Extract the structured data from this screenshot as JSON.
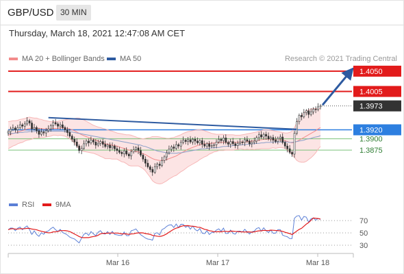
{
  "header": {
    "symbol": "GBP/USD",
    "timeframe": "30 MIN"
  },
  "timestamp": "Thursday, March 18, 2021 12:47:08 AM CET",
  "legend": {
    "ma_bb": "MA 20 + Bollinger Bands",
    "ma50": "MA 50",
    "ma_bb_color": "#f38b8b",
    "ma50_color": "#2d5aa0"
  },
  "copyright": "Research © 2021 Trading Central",
  "rsi_legend": {
    "rsi": "RSI",
    "ma9": "9MA",
    "rsi_color": "#5b7fd6",
    "ma9_color": "#e21b1b"
  },
  "colors": {
    "resistance": "#e21b1b",
    "support": "#2d7fe0",
    "green_level": "#7ac27a",
    "trendline": "#2d5aa0",
    "last_price": "#333333",
    "candle_up": "#3a3a3a"
  },
  "chart_data": {
    "type": "candlestick",
    "price_axis": {
      "ylim": [
        1.3778,
        1.4068
      ]
    },
    "x_tick_labels": [
      "Mar 16",
      "Mar 17",
      "Mar 18"
    ],
    "levels": [
      {
        "value": 1.405,
        "label": "1.4050",
        "kind": "resistance"
      },
      {
        "value": 1.4005,
        "label": "1.4005",
        "kind": "resistance"
      },
      {
        "value": 1.3973,
        "label": "1.3973",
        "kind": "last_price"
      },
      {
        "value": 1.392,
        "label": "1.3920",
        "kind": "support"
      },
      {
        "value": 1.39,
        "label": "1.3900",
        "kind": "minor"
      },
      {
        "value": 1.3875,
        "label": "1.3875",
        "kind": "minor"
      }
    ],
    "close": [
      1.3916,
      1.3921,
      1.3924,
      1.392,
      1.3925,
      1.3931,
      1.3928,
      1.3933,
      1.394,
      1.3935,
      1.3922,
      1.3925,
      1.3918,
      1.391,
      1.3915,
      1.3913,
      1.3918,
      1.3922,
      1.3929,
      1.3936,
      1.3933,
      1.3928,
      1.3931,
      1.3925,
      1.392,
      1.3914,
      1.3906,
      1.3899,
      1.3893,
      1.3884,
      1.3874,
      1.3879,
      1.3889,
      1.3895,
      1.3891,
      1.3897,
      1.3893,
      1.3886,
      1.389,
      1.3894,
      1.3888,
      1.3883,
      1.3886,
      1.388,
      1.3884,
      1.3878,
      1.3874,
      1.387,
      1.3867,
      1.3873,
      1.3866,
      1.3862,
      1.3871,
      1.3876,
      1.388,
      1.3874,
      1.3864,
      1.3855,
      1.3846,
      1.3838,
      1.3832,
      1.3826,
      1.3838,
      1.3844,
      1.3841,
      1.3852,
      1.386,
      1.3869,
      1.3877,
      1.3882,
      1.3879,
      1.3887,
      1.3884,
      1.3892,
      1.3897,
      1.3894,
      1.3898,
      1.3893,
      1.3899,
      1.3895,
      1.3891,
      1.3896,
      1.3888,
      1.3884,
      1.3889,
      1.3883,
      1.3885,
      1.3887,
      1.3893,
      1.3899,
      1.3896,
      1.3902,
      1.3892,
      1.3888,
      1.3894,
      1.3889,
      1.3885,
      1.389,
      1.3893,
      1.3892,
      1.3898,
      1.3895,
      1.3889,
      1.3892,
      1.3895,
      1.3903,
      1.3909,
      1.3904,
      1.391,
      1.3906,
      1.39,
      1.3903,
      1.3897,
      1.3894,
      1.3901,
      1.3904,
      1.3892,
      1.3884,
      1.3878,
      1.387,
      1.3866,
      1.3912,
      1.3938,
      1.3952,
      1.3949,
      1.3958,
      1.3962,
      1.3954,
      1.396,
      1.3966,
      1.3965,
      1.3971,
      1.3973
    ],
    "ma20": [
      1.3908,
      1.391,
      1.3912,
      1.3913,
      1.3915,
      1.3917,
      1.3918,
      1.392,
      1.3922,
      1.3923,
      1.3923,
      1.3924,
      1.3924,
      1.3923,
      1.3923,
      1.3922,
      1.3922,
      1.3922,
      1.3922,
      1.3923,
      1.3923,
      1.3923,
      1.3924,
      1.3924,
      1.3924,
      1.3923,
      1.3922,
      1.392,
      1.3918,
      1.3915,
      1.3912,
      1.3909,
      1.3907,
      1.3905,
      1.3903,
      1.3901,
      1.3899,
      1.3897,
      1.3895,
      1.3893,
      1.3891,
      1.3889,
      1.3888,
      1.3887,
      1.3886,
      1.3885,
      1.3884,
      1.3882,
      1.388,
      1.3879,
      1.3877,
      1.3875,
      1.3874,
      1.3873,
      1.3872,
      1.3871,
      1.3869,
      1.3867,
      1.3865,
      1.3862,
      1.3859,
      1.3856,
      1.3854,
      1.3853,
      1.3852,
      1.3852,
      1.3853,
      1.3854,
      1.3856,
      1.3858,
      1.386,
      1.3862,
      1.3865,
      1.3868,
      1.3871,
      1.3874,
      1.3877,
      1.3879,
      1.3881,
      1.3883,
      1.3885,
      1.3887,
      1.3888,
      1.3889,
      1.3889,
      1.389,
      1.389,
      1.3891,
      1.3891,
      1.3892,
      1.3892,
      1.3892,
      1.3892,
      1.3892,
      1.3892,
      1.3892,
      1.3892,
      1.3892,
      1.3893,
      1.3893,
      1.3893,
      1.3894,
      1.3894,
      1.3895,
      1.3895,
      1.3896,
      1.3897,
      1.3898,
      1.3899,
      1.3899,
      1.3899,
      1.3899,
      1.3899,
      1.3898,
      1.3898,
      1.3898,
      1.3897,
      1.3896,
      1.3894,
      1.3892,
      1.3891,
      1.3892,
      1.3894,
      1.3897,
      1.39,
      1.3903,
      1.3906,
      1.3909,
      1.3912,
      1.3915,
      1.3918,
      1.3922,
      1.3925
    ],
    "bb_upper": [
      1.3938,
      1.3939,
      1.394,
      1.394,
      1.3941,
      1.3943,
      1.3944,
      1.3945,
      1.3947,
      1.3948,
      1.3947,
      1.3946,
      1.3946,
      1.3944,
      1.3943,
      1.3941,
      1.394,
      1.3939,
      1.3938,
      1.3938,
      1.3938,
      1.3939,
      1.394,
      1.3941,
      1.3942,
      1.3943,
      1.3944,
      1.3944,
      1.3945,
      1.3946,
      1.3946,
      1.3944,
      1.3942,
      1.3939,
      1.3936,
      1.3933,
      1.393,
      1.3928,
      1.3926,
      1.3925,
      1.3923,
      1.3922,
      1.392,
      1.3918,
      1.3917,
      1.3915,
      1.3913,
      1.3912,
      1.3911,
      1.391,
      1.3909,
      1.3909,
      1.3908,
      1.3906,
      1.3904,
      1.3902,
      1.3901,
      1.39,
      1.3901,
      1.3902,
      1.3903,
      1.3905,
      1.3905,
      1.3905,
      1.3904,
      1.3903,
      1.3902,
      1.3901,
      1.3901,
      1.3902,
      1.3903,
      1.3905,
      1.3907,
      1.3909,
      1.3912,
      1.3914,
      1.3916,
      1.3917,
      1.3918,
      1.3919,
      1.392,
      1.392,
      1.3919,
      1.3918,
      1.3916,
      1.3914,
      1.3912,
      1.3911,
      1.391,
      1.391,
      1.391,
      1.391,
      1.3909,
      1.3909,
      1.3909,
      1.3909,
      1.3908,
      1.3908,
      1.3908,
      1.3909,
      1.391,
      1.3911,
      1.3912,
      1.3913,
      1.3914,
      1.3915,
      1.3917,
      1.3918,
      1.392,
      1.392,
      1.392,
      1.3919,
      1.3918,
      1.3917,
      1.3916,
      1.3915,
      1.3914,
      1.3913,
      1.3913,
      1.3914,
      1.3917,
      1.3925,
      1.3936,
      1.3945,
      1.3952,
      1.3958,
      1.3962,
      1.3964,
      1.3966,
      1.3967,
      1.3967,
      1.3967,
      1.3967
    ],
    "bb_lower": [
      1.3878,
      1.3881,
      1.3884,
      1.3886,
      1.3889,
      1.3891,
      1.3892,
      1.3895,
      1.3897,
      1.3898,
      1.3899,
      1.3902,
      1.3902,
      1.3902,
      1.3903,
      1.3903,
      1.3904,
      1.3905,
      1.3906,
      1.3908,
      1.3908,
      1.3907,
      1.3908,
      1.3907,
      1.3906,
      1.3903,
      1.39,
      1.3896,
      1.3891,
      1.3884,
      1.3878,
      1.3874,
      1.3872,
      1.3871,
      1.387,
      1.3869,
      1.3868,
      1.3866,
      1.3864,
      1.3861,
      1.3859,
      1.3856,
      1.3856,
      1.3856,
      1.3855,
      1.3855,
      1.3855,
      1.3852,
      1.3849,
      1.3848,
      1.3845,
      1.3841,
      1.384,
      1.384,
      1.384,
      1.384,
      1.3837,
      1.3834,
      1.3829,
      1.3822,
      1.3815,
      1.3807,
      1.3803,
      1.3801,
      1.38,
      1.3801,
      1.3804,
      1.3807,
      1.3811,
      1.3814,
      1.3817,
      1.3819,
      1.3823,
      1.3827,
      1.383,
      1.3834,
      1.3838,
      1.3841,
      1.3844,
      1.3847,
      1.385,
      1.3854,
      1.3857,
      1.386,
      1.3862,
      1.3866,
      1.3868,
      1.3871,
      1.3872,
      1.3874,
      1.3874,
      1.3874,
      1.3875,
      1.3875,
      1.3875,
      1.3875,
      1.3876,
      1.3876,
      1.3878,
      1.3877,
      1.3876,
      1.3877,
      1.3876,
      1.3877,
      1.3876,
      1.3877,
      1.3877,
      1.3878,
      1.3878,
      1.3878,
      1.3878,
      1.3879,
      1.388,
      1.3879,
      1.388,
      1.3881,
      1.388,
      1.3879,
      1.3875,
      1.387,
      1.3865,
      1.3859,
      1.3852,
      1.3849,
      1.3848,
      1.3848,
      1.385,
      1.3854,
      1.3858,
      1.3863,
      1.3869,
      1.3877,
      1.3883
    ],
    "ma50": [
      1.3911,
      1.3912,
      1.3912,
      1.3913,
      1.3913,
      1.3914,
      1.3914,
      1.3915,
      1.3915,
      1.3916,
      1.3916,
      1.3916,
      1.3917,
      1.3917,
      1.3917,
      1.3917,
      1.3917,
      1.3917,
      1.3917,
      1.3917,
      1.3917,
      1.3917,
      1.3917,
      1.3917,
      1.3916,
      1.3916,
      1.3915,
      1.3915,
      1.3914,
      1.3913,
      1.3912,
      1.3911,
      1.391,
      1.3909,
      1.3908,
      1.3907,
      1.3906,
      1.3905,
      1.3904,
      1.3903,
      1.3902,
      1.3901,
      1.39,
      1.3899,
      1.3898,
      1.3897,
      1.3896,
      1.3895,
      1.3894,
      1.3893,
      1.3892,
      1.3891,
      1.389,
      1.3889,
      1.3888,
      1.3887,
      1.3886,
      1.3884,
      1.3883,
      1.3881,
      1.3879,
      1.3877,
      1.3875,
      1.3873,
      1.3872,
      1.3871,
      1.387,
      1.3869,
      1.3868,
      1.3868,
      1.3868,
      1.3868,
      1.3869,
      1.3869,
      1.387,
      1.3871,
      1.3872,
      1.3873,
      1.3874,
      1.3875,
      1.3876,
      1.3877,
      1.3878,
      1.3878,
      1.3879,
      1.3879,
      1.388,
      1.388,
      1.3881,
      1.3881,
      1.3882,
      1.3883,
      1.3883,
      1.3884,
      1.3884,
      1.3885,
      1.3885,
      1.3886,
      1.3886,
      1.3887,
      1.3887,
      1.3888,
      1.3888,
      1.3889,
      1.3889,
      1.389,
      1.389,
      1.3891,
      1.3891,
      1.3892,
      1.3892,
      1.3892,
      1.3893,
      1.3893,
      1.3893,
      1.3893,
      1.3893,
      1.3893,
      1.3893,
      1.3892,
      1.3892,
      1.3893,
      1.3894,
      1.3895,
      1.3896,
      1.3897,
      1.3899,
      1.39,
      1.3901,
      1.3903,
      1.3904,
      1.3905,
      1.3907
    ],
    "rsi": {
      "levels": [
        70,
        50,
        30
      ],
      "level_labels": [
        "70",
        "50",
        "30"
      ]
    }
  }
}
